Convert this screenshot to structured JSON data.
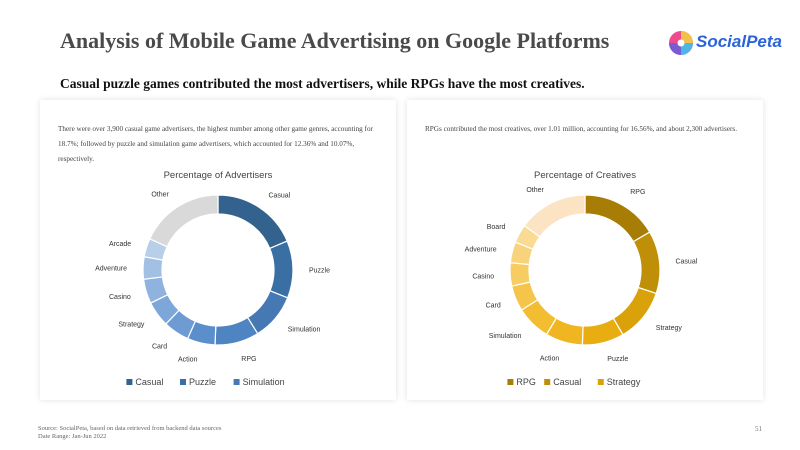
{
  "header": {
    "title": "Analysis of Mobile Game Advertising on Google Platforms",
    "subtitle": "Casual puzzle games contributed the most advertisers, while RPGs have the most creatives.",
    "logo_text": "SocialPeta"
  },
  "left_card": {
    "description": "There were over 3,900 casual game advertisers, the highest number among other game genres, accounting for 18.7%; followed by puzzle and simulation game advertisers, which accounted for 12.36% and 10.07%, respectively."
  },
  "right_card": {
    "description": "RPGs contributed the most creatives, over 1.01 million, accounting for 16.56%, and about 2,300 advertisers."
  },
  "footer": {
    "source": "Source: SocialPeta, based on data retrieved from backend data sources",
    "date_range": "Date Range: Jan-Jun 2022",
    "page_number": "51"
  },
  "chart_data": [
    {
      "type": "pie",
      "title": "Percentage of Advertisers",
      "categories": [
        "Casual",
        "Puzzle",
        "Simulation",
        "RPG",
        "Action",
        "Card",
        "Strategy",
        "Casino",
        "Adventure",
        "Arcade",
        "Other"
      ],
      "values": [
        18.7,
        12.36,
        10.07,
        9.5,
        6.0,
        5.6,
        5.5,
        5.3,
        4.8,
        4.0,
        18.17
      ],
      "colors": [
        "#34628e",
        "#3a6fa3",
        "#4679b3",
        "#4e84c2",
        "#5a8fcb",
        "#6d9bd2",
        "#7da7d8",
        "#8fb3de",
        "#a2c0e4",
        "#b8cfe9",
        "#d9d9d9"
      ],
      "legend": [
        "Casual",
        "Puzzle",
        "Simulation"
      ],
      "legend_position": "bottom"
    },
    {
      "type": "pie",
      "title": "Percentage of Creatives",
      "categories": [
        "RPG",
        "Casual",
        "Strategy",
        "Puzzle",
        "Action",
        "Simulation",
        "Card",
        "Casino",
        "Adventure",
        "Board",
        "Other"
      ],
      "values": [
        16.56,
        13.5,
        11.5,
        9.0,
        8.0,
        7.5,
        5.5,
        5.0,
        4.5,
        4.0,
        14.94
      ],
      "colors": [
        "#a87d06",
        "#bf8f07",
        "#d9a10a",
        "#e8ad11",
        "#f0b621",
        "#f3bd32",
        "#f5c44a",
        "#f7cc63",
        "#f8d37b",
        "#fadb93",
        "#fce3c4"
      ],
      "legend": [
        "RPG",
        "Casual",
        "Strategy"
      ],
      "legend_position": "bottom"
    }
  ]
}
